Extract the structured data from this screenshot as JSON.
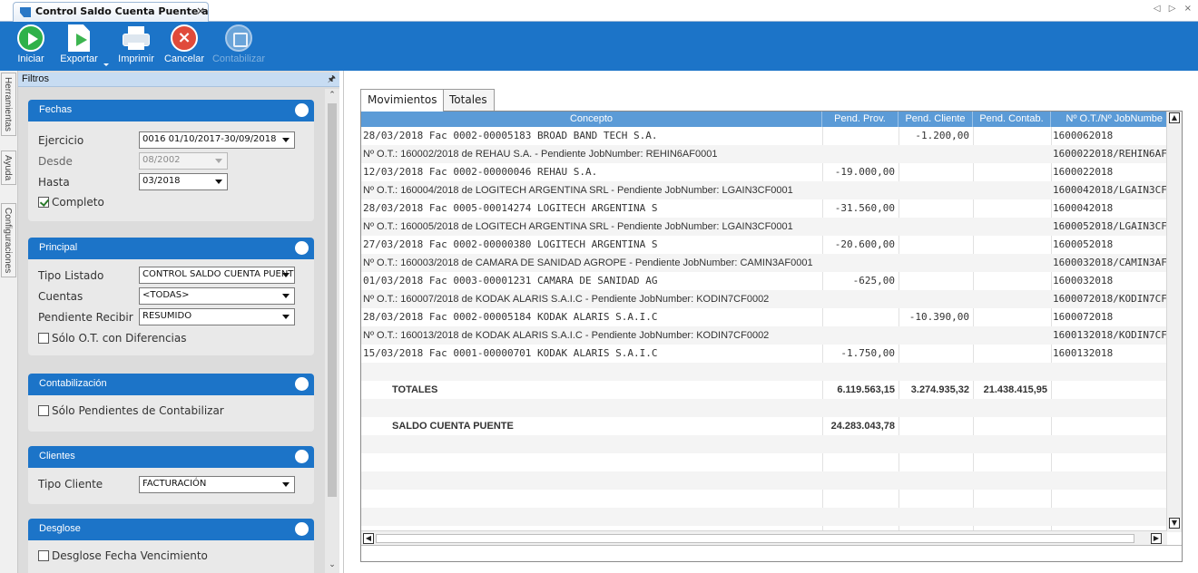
{
  "window": {
    "tab_title": "Control Saldo Cuenta Puente a F...",
    "tab_close": "×",
    "strip_arrows": "◁ ▷ ×"
  },
  "toolbar": {
    "buttons": [
      {
        "label": "Iniciar",
        "icon": "play-icon",
        "enabled": true
      },
      {
        "label": "Exportar",
        "icon": "export-icon",
        "enabled": true
      },
      {
        "label": "Imprimir",
        "icon": "printer-icon",
        "enabled": true
      },
      {
        "label": "Cancelar",
        "icon": "cancel-icon",
        "enabled": true
      },
      {
        "label": "Contabilizar",
        "icon": "accounting-icon",
        "enabled": false
      }
    ]
  },
  "side_tabs": [
    "Herramientas",
    "Ayuda",
    "Configuraciones"
  ],
  "filters": {
    "title": "Filtros",
    "pin": "🖈",
    "groups": {
      "fechas": {
        "title": "Fechas",
        "ejercicio_label": "Ejercicio",
        "ejercicio_value": "0016 01/10/2017-30/09/2018",
        "desde_label": "Desde",
        "desde_value": "08/2002",
        "hasta_label": "Hasta",
        "hasta_value": "03/2018",
        "completo_label": "Completo",
        "completo_checked": true
      },
      "principal": {
        "title": "Principal",
        "tipo_listado_label": "Tipo Listado",
        "tipo_listado_value": "CONTROL SALDO CUENTA PUENT",
        "cuentas_label": "Cuentas",
        "cuentas_value": "<TODAS>",
        "pendiente_label": "Pendiente Recibir",
        "pendiente_value": "RESUMIDO",
        "diferencias_label": "Sólo O.T. con Diferencias",
        "diferencias_checked": false
      },
      "contabilizacion": {
        "title": "Contabilización",
        "pendientes_label": "Sólo Pendientes de Contabilizar",
        "pendientes_checked": false
      },
      "clientes": {
        "title": "Clientes",
        "tipo_cliente_label": "Tipo Cliente",
        "tipo_cliente_value": "FACTURACIÓN"
      },
      "desglose": {
        "title": "Desglose",
        "fecha_venc_label": "Desglose Fecha Vencimiento",
        "fecha_venc_checked": false
      }
    }
  },
  "results": {
    "tabs": [
      "Movimientos",
      "Totales"
    ],
    "active_tab": 0,
    "columns": [
      "Concepto",
      "Pend. Prov.",
      "Pend. Cliente",
      "Pend. Contab.",
      "Nº O.T./Nº JobNumbe"
    ],
    "rows": [
      {
        "kind": "line",
        "c0": "28/03/2018 Fac 0002-00005183 BROAD BAND TECH S.A.",
        "c1": "",
        "c2": "-1.200,00",
        "c3": "",
        "c4": "1600062018"
      },
      {
        "kind": "ot",
        "c0": "Nº O.T.: 160002/2018 de REHAU S.A. - Pendiente    JobNumber: REHIN6AF0001",
        "c1": "",
        "c2": "",
        "c3": "",
        "c4": "1600022018/REHIN6AF000"
      },
      {
        "kind": "line",
        "c0": "12/03/2018 Fac 0002-00000046 REHAU S.A.",
        "c1": "-19.000,00",
        "c2": "",
        "c3": "",
        "c4": "1600022018"
      },
      {
        "kind": "ot",
        "c0": "Nº O.T.: 160004/2018 de LOGITECH ARGENTINA SRL - Pendiente    JobNumber: LGAIN3CF0001",
        "c1": "",
        "c2": "",
        "c3": "",
        "c4": "1600042018/LGAIN3CF000"
      },
      {
        "kind": "line",
        "c0": "28/03/2018 Fac 0005-00014274 LOGITECH ARGENTINA S",
        "c1": "-31.560,00",
        "c2": "",
        "c3": "",
        "c4": "1600042018"
      },
      {
        "kind": "ot",
        "c0": "Nº O.T.: 160005/2018 de LOGITECH ARGENTINA SRL - Pendiente    JobNumber: LGAIN3CF0001",
        "c1": "",
        "c2": "",
        "c3": "",
        "c4": "1600052018/LGAIN3CF000"
      },
      {
        "kind": "line",
        "c0": "27/03/2018 Fac 0002-00000380 LOGITECH ARGENTINA S",
        "c1": "-20.600,00",
        "c2": "",
        "c3": "",
        "c4": "1600052018"
      },
      {
        "kind": "ot",
        "c0": "Nº O.T.: 160003/2018 de CAMARA DE SANIDAD AGROPE - Pendiente    JobNumber: CAMIN3AF0001",
        "c1": "",
        "c2": "",
        "c3": "",
        "c4": "1600032018/CAMIN3AF000"
      },
      {
        "kind": "line",
        "c0": "01/03/2018 Fac 0003-00001231 CAMARA DE SANIDAD AG",
        "c1": "-625,00",
        "c2": "",
        "c3": "",
        "c4": "1600032018"
      },
      {
        "kind": "ot",
        "c0": "Nº O.T.: 160007/2018 de KODAK ALARIS S.A.I.C - Pendiente    JobNumber: KODIN7CF0002",
        "c1": "",
        "c2": "",
        "c3": "",
        "c4": "1600072018/KODIN7CF000"
      },
      {
        "kind": "line",
        "c0": "28/03/2018 Fac 0002-00005184 KODAK ALARIS S.A.I.C",
        "c1": "",
        "c2": "-10.390,00",
        "c3": "",
        "c4": "1600072018"
      },
      {
        "kind": "ot",
        "c0": "Nº O.T.: 160013/2018 de KODAK ALARIS S.A.I.C - Pendiente    JobNumber: KODIN7CF0002",
        "c1": "",
        "c2": "",
        "c3": "",
        "c4": "1600132018/KODIN7CF000"
      },
      {
        "kind": "line",
        "c0": "15/03/2018 Fac 0001-00000701 KODAK ALARIS S.A.I.C",
        "c1": "-1.750,00",
        "c2": "",
        "c3": "",
        "c4": "1600132018"
      },
      {
        "kind": "blank",
        "c0": "",
        "c1": "",
        "c2": "",
        "c3": "",
        "c4": ""
      },
      {
        "kind": "total",
        "c0": "TOTALES",
        "c1": "6.119.563,15",
        "c2": "3.274.935,32",
        "c3": "21.438.415,95",
        "c4": ""
      },
      {
        "kind": "blank",
        "c0": "",
        "c1": "",
        "c2": "",
        "c3": "",
        "c4": ""
      },
      {
        "kind": "total",
        "c0": "SALDO CUENTA PUENTE",
        "c1": "24.283.043,78",
        "c2": "",
        "c3": "",
        "c4": ""
      }
    ],
    "empty_rows": 6
  },
  "colors": {
    "accent": "#1c74c8",
    "grid_header": "#5b9bd7",
    "panel_bg": "#dcdcdc"
  }
}
